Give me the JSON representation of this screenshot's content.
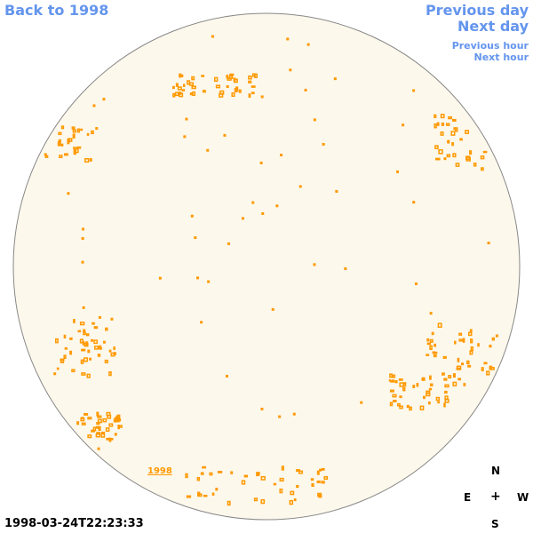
{
  "navigation": {
    "back_label": "Back to 1998",
    "previous_day_label": "Previous day",
    "next_day_label": "Next day",
    "previous_hour_label": "Previous hour",
    "next_hour_label": "Next hour"
  },
  "map": {
    "year_link_label": "1998",
    "timestamp": "1998-03-24T22:23:33",
    "disk_fill_color": "#fdf8ec",
    "disk_stroke_color": "#888888",
    "feature_color": "#ff9900"
  },
  "compass": {
    "north": "N",
    "east": "E",
    "center": "+",
    "west": "W",
    "south": "S"
  },
  "colors": {
    "link": "#6495ed"
  }
}
